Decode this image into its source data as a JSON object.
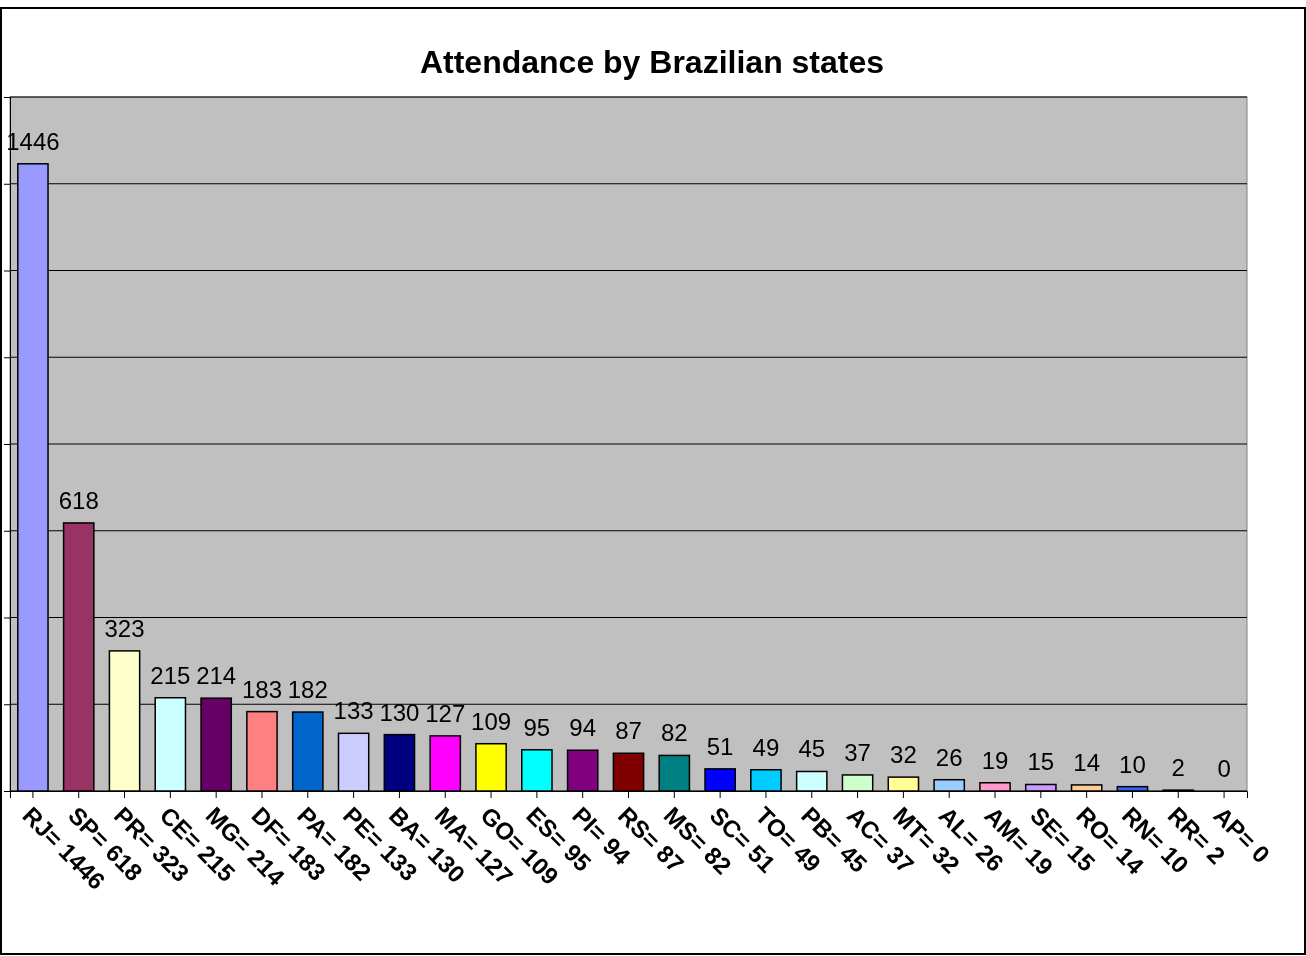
{
  "chart_data": {
    "type": "bar",
    "title": "Attendance by Brazilian states",
    "categories": [
      "RJ= 1446",
      "SP= 618",
      "PR= 323",
      "CE= 215",
      "MG= 214",
      "DF= 183",
      "PA= 182",
      "PE= 133",
      "BA= 130",
      "MA= 127",
      "GO= 109",
      "ES= 95",
      "PI= 94",
      "RS= 87",
      "MS= 82",
      "SC= 51",
      "TO= 49",
      "PB= 45",
      "AC= 37",
      "MT= 32",
      "AL= 26",
      "AM= 19",
      "SE= 15",
      "RO= 14",
      "RN= 10",
      "RR= 2",
      "AP= 0"
    ],
    "values": [
      1446,
      618,
      323,
      215,
      214,
      183,
      182,
      133,
      130,
      127,
      109,
      95,
      94,
      87,
      82,
      51,
      49,
      45,
      37,
      32,
      26,
      19,
      15,
      14,
      10,
      2,
      0
    ],
    "colors": [
      "#9999ff",
      "#993366",
      "#ffffcc",
      "#ccffff",
      "#660066",
      "#ff8080",
      "#0066cc",
      "#ccccff",
      "#000080",
      "#ff00ff",
      "#ffff00",
      "#00ffff",
      "#800080",
      "#800000",
      "#008080",
      "#0000ff",
      "#00ccff",
      "#ccffff",
      "#ccffcc",
      "#ffff99",
      "#99ccff",
      "#ff99cc",
      "#cc99ff",
      "#ffcc99",
      "#3366ff",
      "#33cccc",
      "#99cc00"
    ],
    "ylim": [
      0,
      1600
    ],
    "yticks": [
      {
        "value": 0,
        "label": null
      },
      {
        "value": 200,
        "label": null
      },
      {
        "value": 400,
        "label": null
      },
      {
        "value": 600,
        "label": null
      },
      {
        "value": 800,
        "label": null
      },
      {
        "value": 1000,
        "label": null
      },
      {
        "value": 1200,
        "label": null
      },
      {
        "value": 1400,
        "label": null
      },
      {
        "value": 1600,
        "label": null
      }
    ],
    "grid": "y",
    "tick_labels": "x",
    "data_labels": true
  }
}
